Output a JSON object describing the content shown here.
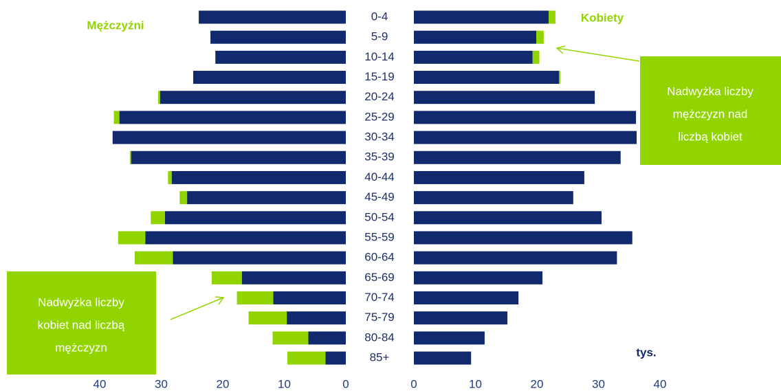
{
  "chart_data": {
    "type": "pyramid",
    "categories": [
      "0-4",
      "5-9",
      "10-14",
      "15-19",
      "20-24",
      "25-29",
      "30-34",
      "35-39",
      "40-44",
      "45-49",
      "50-54",
      "55-59",
      "60-64",
      "65-69",
      "70-74",
      "75-79",
      "80-84",
      "85+"
    ],
    "series": [
      {
        "name": "Mężczyźni",
        "axis": "x2",
        "color": "#112a6d",
        "values": [
          23.9,
          22.0,
          21.2,
          24.8,
          30.2,
          36.8,
          37.9,
          34.9,
          28.3,
          25.8,
          29.4,
          32.6,
          28.1,
          16.9,
          11.8,
          9.6,
          6.1,
          3.3
        ]
      },
      {
        "axis": "x2",
        "color": "#92d400",
        "values": [
          0,
          0,
          0,
          0,
          0.3,
          0.9,
          0,
          0.2,
          0.6,
          1.2,
          2.3,
          4.4,
          6.2,
          4.9,
          5.9,
          6.2,
          5.8,
          6.2
        ]
      },
      {
        "name": "Kobiety",
        "color": "#112a6d",
        "values": [
          21.9,
          19.9,
          19.3,
          23.6,
          29.4,
          36.1,
          36.2,
          33.6,
          27.7,
          25.9,
          30.5,
          35.5,
          33.0,
          20.9,
          17.0,
          15.2,
          11.5,
          9.3
        ]
      },
      {
        "color": "#92d400",
        "values": [
          1.1,
          1.2,
          1.1,
          0.2,
          0,
          0,
          0,
          0,
          0,
          0,
          0,
          0,
          0,
          0,
          0,
          0,
          0,
          0
        ]
      }
    ],
    "x2lim": [
      0,
      40
    ],
    "x2ticks": [
      40,
      30,
      20,
      10,
      0
    ],
    "xlim": [
      0,
      40
    ],
    "xticks": [
      0,
      10,
      20,
      30,
      40
    ],
    "unit": "tys.",
    "annotations": [
      {
        "lines": [
          "Nadwyżka liczby",
          "mężczyzn nad",
          "liczbą kobiet"
        ]
      },
      {
        "lines": [
          "Nadwyżka liczby",
          "kobiet nad liczbą",
          "mężczyzn"
        ]
      }
    ]
  }
}
